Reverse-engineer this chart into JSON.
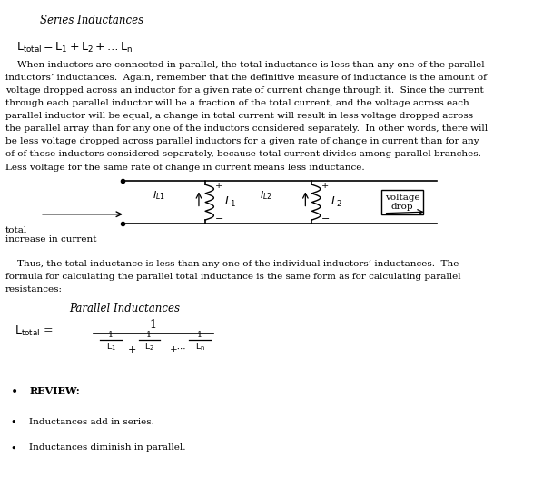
{
  "title_series": "Series Inductances",
  "title_parallel": "Parallel Inductances",
  "review_header": "REVIEW:",
  "bullet1": "Inductances add in series.",
  "bullet2": "Inductances diminish in parallel.",
  "para1_lines": [
    "    When inductors are connected in parallel, the total inductance is less than any one of the parallel",
    "inductors’ inductances.  Again, remember that the definitive measure of inductance is the amount of",
    "voltage dropped across an inductor for a given rate of current change through it.  Since the current",
    "through each parallel inductor will be a fraction of the total current, and the voltage across each",
    "parallel inductor will be equal, a change in total current will result in less voltage dropped across",
    "the parallel array than for any one of the inductors considered separately.  In other words, there will",
    "be less voltage dropped across parallel inductors for a given rate of change in current than for any",
    "of of those inductors considered separately, because total current divides among parallel branches.",
    "Less voltage for the same rate of change in current means less inductance."
  ],
  "para2_lines": [
    "    Thus, the total inductance is less than any one of the individual inductors’ inductances.  The",
    "formula for calculating the parallel total inductance is the same form as for calculating parallel",
    "resistances:"
  ],
  "bg_color": "#ffffff",
  "text_color": "#000000",
  "font_size_body": 7.5,
  "font_size_title": 8.5,
  "font_size_formula": 9.0
}
